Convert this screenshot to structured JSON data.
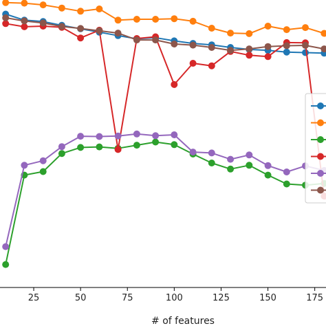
{
  "chart_data": {
    "type": "line",
    "xlabel": "# of features",
    "ylabel": "",
    "title": "",
    "xlim": [
      7,
      181
    ],
    "ylim": [
      0,
      1
    ],
    "x_ticks": [
      25,
      50,
      75,
      100,
      125,
      150,
      175
    ],
    "x_tick_labels": [
      "25",
      "50",
      "75",
      "100",
      "125",
      "150",
      "175"
    ],
    "legend_placement": "center-right",
    "grid": false,
    "x": [
      10,
      20,
      30,
      40,
      50,
      60,
      70,
      80,
      90,
      100,
      110,
      120,
      130,
      140,
      150,
      160,
      170,
      180
    ],
    "series": [
      {
        "color": "#1f77b4",
        "values": [
          0.951,
          0.93,
          0.925,
          0.912,
          0.9,
          0.888,
          0.876,
          0.865,
          0.869,
          0.858,
          0.849,
          0.844,
          0.835,
          0.828,
          0.825,
          0.819,
          0.817,
          0.815
        ]
      },
      {
        "color": "#ff7f0e",
        "values": [
          0.991,
          0.989,
          0.983,
          0.972,
          0.961,
          0.969,
          0.93,
          0.933,
          0.933,
          0.935,
          0.926,
          0.902,
          0.885,
          0.883,
          0.909,
          0.897,
          0.904,
          0.884
        ]
      },
      {
        "color": "#2ca02c",
        "values": [
          0.08,
          0.391,
          0.403,
          0.466,
          0.487,
          0.489,
          0.484,
          0.495,
          0.506,
          0.497,
          0.464,
          0.433,
          0.412,
          0.425,
          0.391,
          0.36,
          0.356,
          0.362
        ]
      },
      {
        "color": "#d62728",
        "values": [
          0.918,
          0.907,
          0.909,
          0.905,
          0.868,
          0.895,
          0.48,
          0.866,
          0.872,
          0.706,
          0.78,
          0.771,
          0.821,
          0.808,
          0.803,
          0.852,
          0.851,
          0.318
        ]
      },
      {
        "color": "#9467bd",
        "values": [
          0.142,
          0.425,
          0.441,
          0.49,
          0.526,
          0.525,
          0.527,
          0.534,
          0.528,
          0.531,
          0.471,
          0.468,
          0.446,
          0.461,
          0.424,
          0.402,
          0.423,
          0.407
        ]
      },
      {
        "color": "#8c564b",
        "values": [
          0.938,
          0.927,
          0.92,
          0.908,
          0.901,
          0.893,
          0.885,
          0.861,
          0.861,
          0.847,
          0.843,
          0.835,
          0.825,
          0.83,
          0.838,
          0.841,
          0.842,
          0.83
        ]
      }
    ]
  }
}
